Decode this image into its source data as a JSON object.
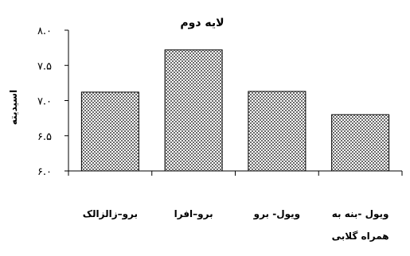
{
  "chart_data": {
    "type": "bar",
    "title": "لایه دوم",
    "ylabel": "اسیدیته",
    "xlabel": "",
    "categories": [
      "برو–زالزالک",
      "برو–افرا",
      "ویول- برو",
      "ویول -بنه به\nهمراه گلابی"
    ],
    "values": [
      7.12,
      7.72,
      7.13,
      6.8
    ],
    "ylim": [
      6.0,
      8.0
    ],
    "ytick_values": [
      6.0,
      6.5,
      7.0,
      7.5,
      8.0
    ],
    "yticks": [
      "۶.۰",
      "۶.۵",
      "۷.۰",
      "۷.۵",
      "۸.۰"
    ],
    "grid": false,
    "bar_fill": "#b0b0b0",
    "bar_pattern": "checkered"
  }
}
